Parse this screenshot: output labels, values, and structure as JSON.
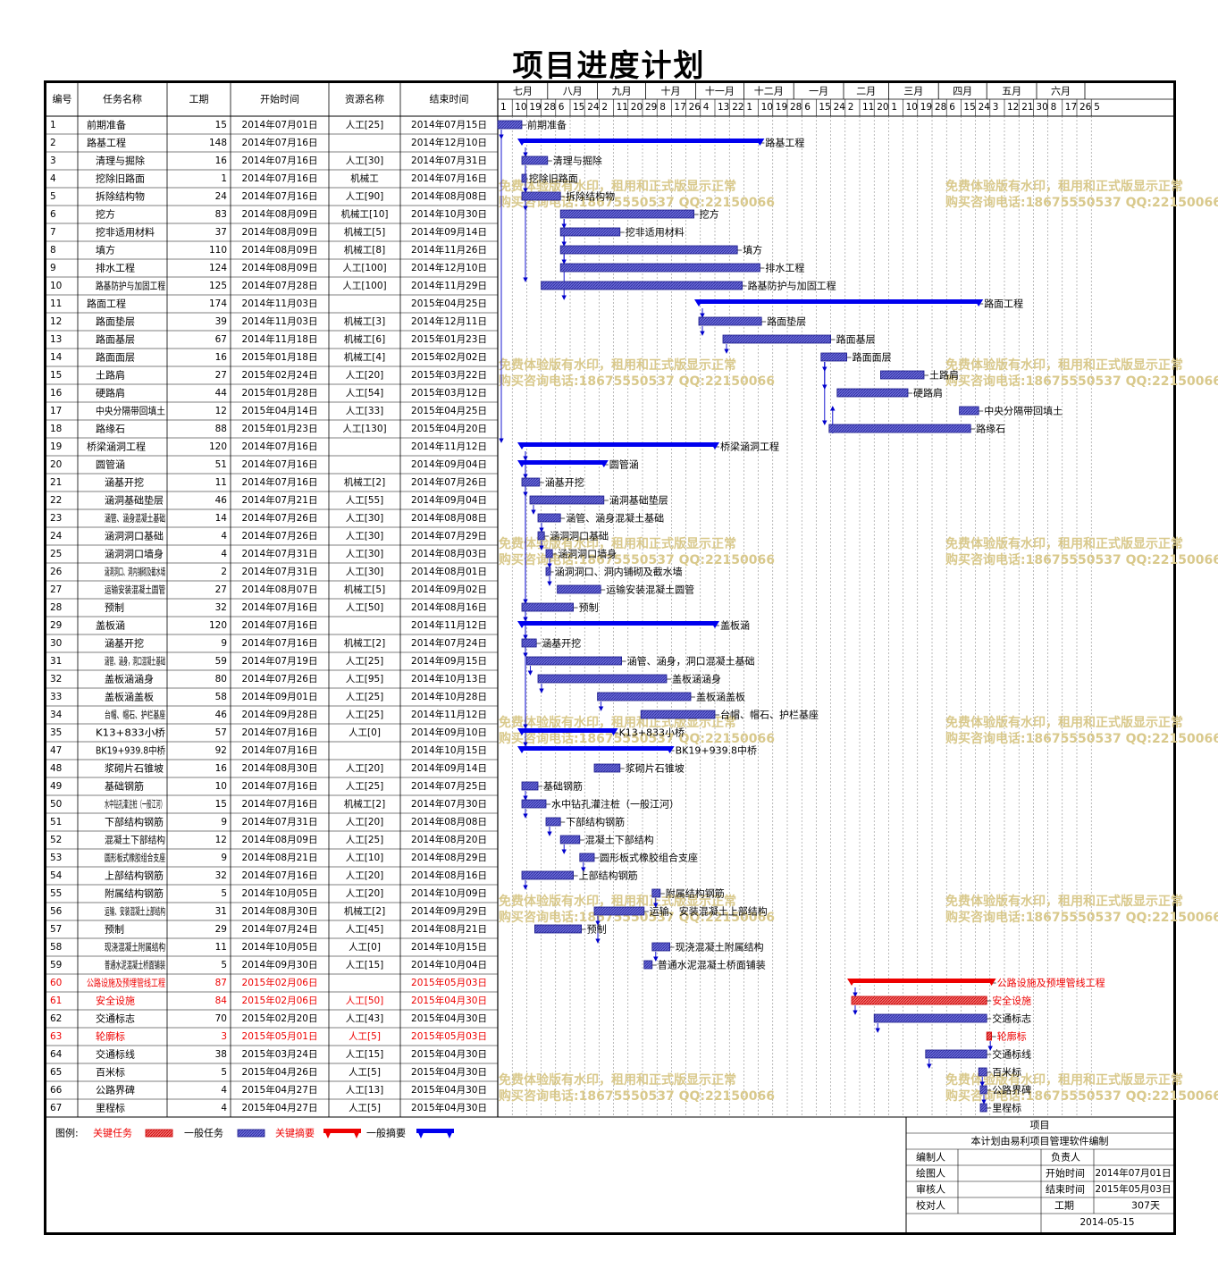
{
  "title": "项目进度计划",
  "headers": {
    "id": "编号",
    "name": "任务名称",
    "dur": "工期",
    "start": "开始时间",
    "res": "资源名称",
    "end": "结束时间"
  },
  "months": [
    {
      "label": "七月",
      "days": [
        "1",
        "10",
        "19",
        "28"
      ]
    },
    {
      "label": "八月",
      "days": [
        "6",
        "15",
        "24"
      ]
    },
    {
      "label": "九月",
      "days": [
        "2",
        "11",
        "20",
        "29"
      ]
    },
    {
      "label": "十月",
      "days": [
        "8",
        "17",
        "26"
      ]
    },
    {
      "label": "十一月",
      "days": [
        "4",
        "13",
        "22"
      ]
    },
    {
      "label": "十二月",
      "days": [
        "1",
        "10",
        "19",
        "28"
      ]
    },
    {
      "label": "一月",
      "days": [
        "6",
        "15",
        "24"
      ]
    },
    {
      "label": "二月",
      "days": [
        "2",
        "11",
        "20"
      ]
    },
    {
      "label": "三月",
      "days": [
        "1",
        "10",
        "19",
        "28"
      ]
    },
    {
      "label": "四月",
      "days": [
        "6",
        "15",
        "24"
      ]
    },
    {
      "label": "五月",
      "days": [
        "3",
        "12",
        "21",
        "30"
      ]
    },
    {
      "label": "六月",
      "days": [
        "8",
        "17",
        "26",
        "5"
      ]
    }
  ],
  "tasks": [
    {
      "id": "1",
      "name": "前期准备",
      "level": 0,
      "dur": "15",
      "start": "2014年07月01日",
      "res": "人工[25]",
      "end": "2014年07月15日",
      "type": "task",
      "bar_label": "前期准备"
    },
    {
      "id": "2",
      "name": "路基工程",
      "level": 0,
      "dur": "148",
      "start": "2014年07月16日",
      "res": "",
      "end": "2014年12月10日",
      "type": "summary",
      "bar_label": "路基工程"
    },
    {
      "id": "3",
      "name": "清理与掘除",
      "level": 1,
      "dur": "16",
      "start": "2014年07月16日",
      "res": "人工[30]",
      "end": "2014年07月31日",
      "type": "task",
      "bar_label": "清理与掘除"
    },
    {
      "id": "4",
      "name": "挖除旧路面",
      "level": 1,
      "dur": "1",
      "start": "2014年07月16日",
      "res": "机械工",
      "end": "2014年07月16日",
      "type": "task",
      "bar_label": "挖除旧路面"
    },
    {
      "id": "5",
      "name": "拆除结构物",
      "level": 1,
      "dur": "24",
      "start": "2014年07月16日",
      "res": "人工[90]",
      "end": "2014年08月08日",
      "type": "task",
      "bar_label": "拆除结构物"
    },
    {
      "id": "6",
      "name": "挖方",
      "level": 1,
      "dur": "83",
      "start": "2014年08月09日",
      "res": "机械工[10]",
      "end": "2014年10月30日",
      "type": "task",
      "bar_label": "挖方"
    },
    {
      "id": "7",
      "name": "挖非适用材料",
      "level": 1,
      "dur": "37",
      "start": "2014年08月09日",
      "res": "机械工[5]",
      "end": "2014年09月14日",
      "type": "task",
      "bar_label": "挖非适用材料"
    },
    {
      "id": "8",
      "name": "填方",
      "level": 1,
      "dur": "110",
      "start": "2014年08月09日",
      "res": "机械工[8]",
      "end": "2014年11月26日",
      "type": "task",
      "bar_label": "填方"
    },
    {
      "id": "9",
      "name": "排水工程",
      "level": 1,
      "dur": "124",
      "start": "2014年08月09日",
      "res": "人工[100]",
      "end": "2014年12月10日",
      "type": "task",
      "bar_label": "排水工程"
    },
    {
      "id": "10",
      "name": "路基防护与加固工程",
      "level": 1,
      "dur": "125",
      "start": "2014年07月28日",
      "res": "人工[100]",
      "end": "2014年11月29日",
      "type": "task",
      "bar_label": "路基防护与加固工程"
    },
    {
      "id": "11",
      "name": "路面工程",
      "level": 0,
      "dur": "174",
      "start": "2014年11月03日",
      "res": "",
      "end": "2015年04月25日",
      "type": "summary",
      "bar_label": "路面工程"
    },
    {
      "id": "12",
      "name": "路面垫层",
      "level": 1,
      "dur": "39",
      "start": "2014年11月03日",
      "res": "机械工[3]",
      "end": "2014年12月11日",
      "type": "task",
      "bar_label": "路面垫层"
    },
    {
      "id": "13",
      "name": "路面基层",
      "level": 1,
      "dur": "67",
      "start": "2014年11月18日",
      "res": "机械工[6]",
      "end": "2015年01月23日",
      "type": "task",
      "bar_label": "路面基层"
    },
    {
      "id": "14",
      "name": "路面面层",
      "level": 1,
      "dur": "16",
      "start": "2015年01月18日",
      "res": "机械工[4]",
      "end": "2015年02月02日",
      "type": "task",
      "bar_label": "路面面层"
    },
    {
      "id": "15",
      "name": "土路肩",
      "level": 1,
      "dur": "27",
      "start": "2015年02月24日",
      "res": "人工[20]",
      "end": "2015年03月22日",
      "type": "task",
      "bar_label": "土路肩"
    },
    {
      "id": "16",
      "name": "硬路肩",
      "level": 1,
      "dur": "44",
      "start": "2015年01月28日",
      "res": "人工[54]",
      "end": "2015年03月12日",
      "type": "task",
      "bar_label": "硬路肩"
    },
    {
      "id": "17",
      "name": "中央分隔带回填土",
      "level": 1,
      "dur": "12",
      "start": "2015年04月14日",
      "res": "人工[33]",
      "end": "2015年04月25日",
      "type": "task",
      "bar_label": "中央分隔带回填土"
    },
    {
      "id": "18",
      "name": "路缘石",
      "level": 1,
      "dur": "88",
      "start": "2015年01月23日",
      "res": "人工[130]",
      "end": "2015年04月20日",
      "type": "task",
      "bar_label": "路缘石"
    },
    {
      "id": "19",
      "name": "桥梁涵洞工程",
      "level": 0,
      "dur": "120",
      "start": "2014年07月16日",
      "res": "",
      "end": "2014年11月12日",
      "type": "summary",
      "bar_label": "桥梁涵洞工程"
    },
    {
      "id": "20",
      "name": "圆管涵",
      "level": 1,
      "dur": "51",
      "start": "2014年07月16日",
      "res": "",
      "end": "2014年09月04日",
      "type": "summary",
      "bar_label": "圆管涵"
    },
    {
      "id": "21",
      "name": "涵基开挖",
      "level": 2,
      "dur": "11",
      "start": "2014年07月16日",
      "res": "机械工[2]",
      "end": "2014年07月26日",
      "type": "task",
      "bar_label": "涵基开挖"
    },
    {
      "id": "22",
      "name": "涵洞基础垫层",
      "level": 2,
      "dur": "46",
      "start": "2014年07月21日",
      "res": "人工[55]",
      "end": "2014年09月04日",
      "type": "task",
      "bar_label": "涵洞基础垫层"
    },
    {
      "id": "23",
      "name": "涵管、涵身混凝土基础",
      "level": 2,
      "dur": "14",
      "start": "2014年07月26日",
      "res": "人工[30]",
      "end": "2014年08月08日",
      "type": "task",
      "bar_label": "涵管、涵身混凝土基础"
    },
    {
      "id": "24",
      "name": "涵洞洞口基础",
      "level": 2,
      "dur": "4",
      "start": "2014年07月26日",
      "res": "人工[30]",
      "end": "2014年07月29日",
      "type": "task",
      "bar_label": "涵洞洞口基础"
    },
    {
      "id": "25",
      "name": "涵洞洞口墙身",
      "level": 2,
      "dur": "4",
      "start": "2014年07月31日",
      "res": "人工[30]",
      "end": "2014年08月03日",
      "type": "task",
      "bar_label": "涵洞洞口墙身"
    },
    {
      "id": "26",
      "name": "涵洞洞口、洞内铺砌及截水墙",
      "level": 2,
      "dur": "2",
      "start": "2014年07月31日",
      "res": "人工[30]",
      "end": "2014年08月01日",
      "type": "task",
      "bar_label": "涵洞洞口、洞内铺砌及截水墙"
    },
    {
      "id": "27",
      "name": "运输安装混凝土圆管",
      "level": 2,
      "dur": "27",
      "start": "2014年08月07日",
      "res": "机械工[5]",
      "end": "2014年09月02日",
      "type": "task",
      "bar_label": "运输安装混凝土圆管"
    },
    {
      "id": "28",
      "name": "预制",
      "level": 2,
      "dur": "32",
      "start": "2014年07月16日",
      "res": "人工[50]",
      "end": "2014年08月16日",
      "type": "task",
      "bar_label": "预制"
    },
    {
      "id": "29",
      "name": "盖板涵",
      "level": 1,
      "dur": "120",
      "start": "2014年07月16日",
      "res": "",
      "end": "2014年11月12日",
      "type": "summary",
      "bar_label": "盖板涵"
    },
    {
      "id": "30",
      "name": "涵基开挖",
      "level": 2,
      "dur": "9",
      "start": "2014年07月16日",
      "res": "机械工[2]",
      "end": "2014年07月24日",
      "type": "task",
      "bar_label": "涵基开挖"
    },
    {
      "id": "31",
      "name": "涵管、涵身，洞口混凝土基础",
      "level": 2,
      "dur": "59",
      "start": "2014年07月19日",
      "res": "人工[25]",
      "end": "2014年09月15日",
      "type": "task",
      "bar_label": "涵管、涵身，洞口混凝土基础"
    },
    {
      "id": "32",
      "name": "盖板涵涵身",
      "level": 2,
      "dur": "80",
      "start": "2014年07月26日",
      "res": "人工[95]",
      "end": "2014年10月13日",
      "type": "task",
      "bar_label": "盖板涵涵身"
    },
    {
      "id": "33",
      "name": "盖板涵盖板",
      "level": 2,
      "dur": "58",
      "start": "2014年09月01日",
      "res": "人工[25]",
      "end": "2014年10月28日",
      "type": "task",
      "bar_label": "盖板涵盖板"
    },
    {
      "id": "34",
      "name": "台帽、帽石、护栏基座",
      "level": 2,
      "dur": "46",
      "start": "2014年09月28日",
      "res": "人工[25]",
      "end": "2014年11月12日",
      "type": "task",
      "bar_label": "台帽、帽石、护栏基座"
    },
    {
      "id": "35",
      "name": "K13+833小桥",
      "level": 1,
      "dur": "57",
      "start": "2014年07月16日",
      "res": "人工[0]",
      "end": "2014年09月10日",
      "type": "summary",
      "bar_label": "K13+833小桥"
    },
    {
      "id": "47",
      "name": "BK19+939.8中桥",
      "level": 1,
      "dur": "92",
      "start": "2014年07月16日",
      "res": "",
      "end": "2014年10月15日",
      "type": "summary",
      "bar_label": "BK19+939.8中桥"
    },
    {
      "id": "48",
      "name": "浆砌片石锥坡",
      "level": 2,
      "dur": "16",
      "start": "2014年08月30日",
      "res": "人工[20]",
      "end": "2014年09月14日",
      "type": "task",
      "bar_label": "浆砌片石锥坡"
    },
    {
      "id": "49",
      "name": "基础钢筋",
      "level": 2,
      "dur": "10",
      "start": "2014年07月16日",
      "res": "人工[25]",
      "end": "2014年07月25日",
      "type": "task",
      "bar_label": "基础钢筋"
    },
    {
      "id": "50",
      "name": "水中钻孔灌注桩（一般江河）",
      "level": 2,
      "dur": "15",
      "start": "2014年07月16日",
      "res": "机械工[2]",
      "end": "2014年07月30日",
      "type": "task",
      "bar_label": "水中钻孔灌注桩（一般江河）"
    },
    {
      "id": "51",
      "name": "下部结构钢筋",
      "level": 2,
      "dur": "9",
      "start": "2014年07月31日",
      "res": "人工[20]",
      "end": "2014年08月08日",
      "type": "task",
      "bar_label": "下部结构钢筋"
    },
    {
      "id": "52",
      "name": "混凝土下部结构",
      "level": 2,
      "dur": "12",
      "start": "2014年08月09日",
      "res": "人工[25]",
      "end": "2014年08月20日",
      "type": "task",
      "bar_label": "混凝土下部结构"
    },
    {
      "id": "53",
      "name": "圆形板式橡胶组合支座",
      "level": 2,
      "dur": "9",
      "start": "2014年08月21日",
      "res": "人工[10]",
      "end": "2014年08月29日",
      "type": "task",
      "bar_label": "圆形板式橡胶组合支座"
    },
    {
      "id": "54",
      "name": "上部结构钢筋",
      "level": 2,
      "dur": "32",
      "start": "2014年07月16日",
      "res": "人工[20]",
      "end": "2014年08月16日",
      "type": "task",
      "bar_label": "上部结构钢筋"
    },
    {
      "id": "55",
      "name": "附属结构钢筋",
      "level": 2,
      "dur": "5",
      "start": "2014年10月05日",
      "res": "人工[20]",
      "end": "2014年10月09日",
      "type": "task",
      "bar_label": "附属结构钢筋"
    },
    {
      "id": "56",
      "name": "运输、安装混凝土上部结构",
      "level": 2,
      "dur": "31",
      "start": "2014年08月30日",
      "res": "机械工[2]",
      "end": "2014年09月29日",
      "type": "task",
      "bar_label": "运输、安装混凝土上部结构"
    },
    {
      "id": "57",
      "name": "预制",
      "level": 2,
      "dur": "29",
      "start": "2014年07月24日",
      "res": "人工[45]",
      "end": "2014年08月21日",
      "type": "task",
      "bar_label": "预制"
    },
    {
      "id": "58",
      "name": "现浇混凝土附属结构",
      "level": 2,
      "dur": "11",
      "start": "2014年10月05日",
      "res": "人工[0]",
      "end": "2014年10月15日",
      "type": "task",
      "bar_label": "现浇混凝土附属结构"
    },
    {
      "id": "59",
      "name": "普通水泥混凝土桥面铺装",
      "level": 2,
      "dur": "5",
      "start": "2014年09月30日",
      "res": "人工[15]",
      "end": "2014年10月04日",
      "type": "task",
      "bar_label": "普通水泥混凝土桥面铺装"
    },
    {
      "id": "60",
      "name": "公路设施及预埋管线工程",
      "level": 0,
      "dur": "87",
      "start": "2015年02月06日",
      "res": "",
      "end": "2015年05月03日",
      "type": "critical_summary",
      "bar_label": "公路设施及预埋管线工程"
    },
    {
      "id": "61",
      "name": "安全设施",
      "level": 1,
      "dur": "84",
      "start": "2015年02月06日",
      "res": "人工[50]",
      "end": "2015年04月30日",
      "type": "critical_task",
      "bar_label": "安全设施"
    },
    {
      "id": "62",
      "name": "交通标志",
      "level": 1,
      "dur": "70",
      "start": "2015年02月20日",
      "res": "人工[43]",
      "end": "2015年04月30日",
      "type": "task",
      "bar_label": "交通标志"
    },
    {
      "id": "63",
      "name": "轮廓标",
      "level": 1,
      "dur": "3",
      "start": "2015年05月01日",
      "res": "人工[5]",
      "end": "2015年05月03日",
      "type": "critical_task",
      "bar_label": "轮廓标"
    },
    {
      "id": "64",
      "name": "交通标线",
      "level": 1,
      "dur": "38",
      "start": "2015年03月24日",
      "res": "人工[15]",
      "end": "2015年04月30日",
      "type": "task",
      "bar_label": "交通标线"
    },
    {
      "id": "65",
      "name": "百米标",
      "level": 1,
      "dur": "5",
      "start": "2015年04月26日",
      "res": "人工[5]",
      "end": "2015年04月30日",
      "type": "task",
      "bar_label": "百米标"
    },
    {
      "id": "66",
      "name": "公路界碑",
      "level": 1,
      "dur": "4",
      "start": "2015年04月27日",
      "res": "人工[13]",
      "end": "2015年04月30日",
      "type": "task",
      "bar_label": "公路界碑"
    },
    {
      "id": "67",
      "name": "里程标",
      "level": 1,
      "dur": "4",
      "start": "2015年04月27日",
      "res": "人工[5]",
      "end": "2015年04月30日",
      "type": "task",
      "bar_label": "里程标"
    }
  ],
  "watermark": {
    "line1": "免费体验版有水印，租用和正式版显示正常",
    "line2": "购买咨询电话:18675550537 QQ:22150066"
  },
  "legend": {
    "prefix": "图例:",
    "critical_task": "关键任务",
    "task": "一般任务",
    "critical_summary": "关键摘要",
    "summary": "一般摘要"
  },
  "info": {
    "header": "项目",
    "subtitle": "本计划由易利项目管理软件编制",
    "editor": "编制人",
    "owner": "负责人",
    "drawer": "绘图人",
    "start_label": "开始时间",
    "start_value": "2014年07月01日",
    "reviewer": "审核人",
    "end_label": "结束时间",
    "end_value": "2015年05月03日",
    "checker": "校对人",
    "dur_label": "工期",
    "dur_value": "307天",
    "date": "2014-05-15"
  },
  "colors": {
    "task": "#4848c8",
    "summary": "#0000ee",
    "critical": "#ee0000",
    "critical_text": "#ee0000",
    "watermark": "#d9c98c"
  }
}
